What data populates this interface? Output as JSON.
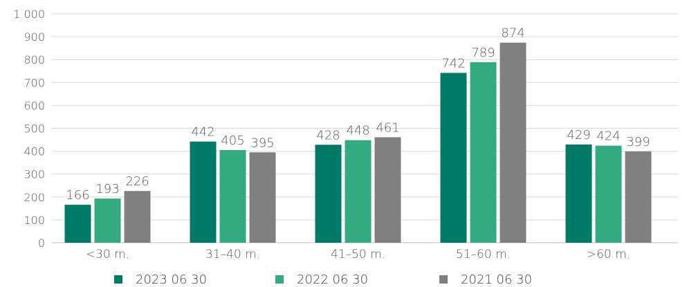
{
  "chart_data": {
    "type": "bar",
    "title": "",
    "xlabel": "",
    "ylabel": "",
    "ylim": [
      0,
      1000
    ],
    "yticks": [
      0,
      100,
      200,
      300,
      400,
      500,
      600,
      700,
      800,
      900,
      1000
    ],
    "ytick_labels": [
      "0",
      "100",
      "200",
      "300",
      "400",
      "500",
      "600",
      "700",
      "800",
      "900",
      "1 000"
    ],
    "grid": true,
    "legend_position": "bottom",
    "categories": [
      "<30 m.",
      "31–40 m.",
      "41–50 m.",
      "51–60 m.",
      ">60 m."
    ],
    "series": [
      {
        "name": "2023 06 30",
        "color": "#007A67",
        "values": [
          166,
          442,
          428,
          742,
          429
        ]
      },
      {
        "name": "2022 06 30",
        "color": "#33AA7F",
        "values": [
          193,
          405,
          448,
          789,
          424
        ]
      },
      {
        "name": "2021 06 30",
        "color": "#808080",
        "values": [
          226,
          395,
          461,
          874,
          399
        ]
      }
    ]
  }
}
